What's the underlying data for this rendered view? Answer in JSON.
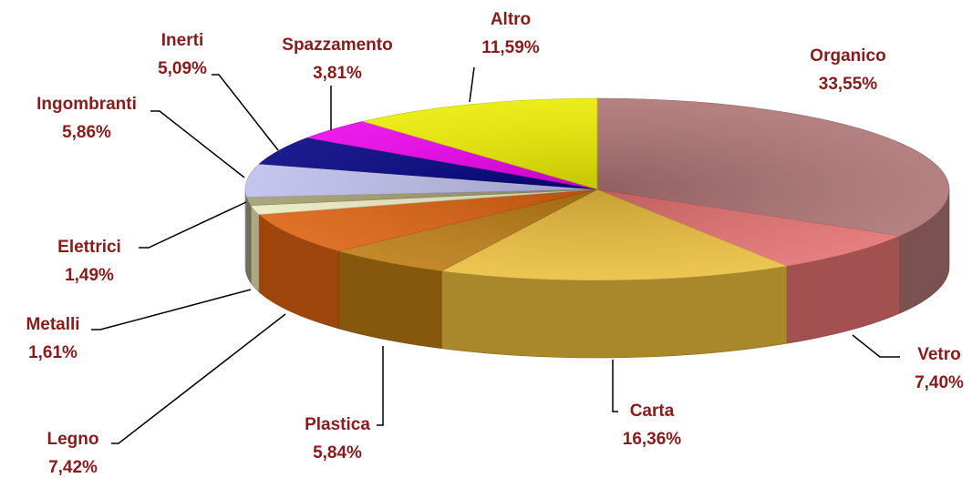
{
  "chart_data": {
    "type": "pie3d",
    "categories": [
      "Organico",
      "Vetro",
      "Carta",
      "Plastica",
      "Legno",
      "Metalli",
      "Elettrici",
      "Ingombranti",
      "Inerti",
      "Spazzamento",
      "Altro"
    ],
    "values": [
      33.55,
      7.4,
      16.36,
      5.84,
      7.42,
      1.61,
      1.49,
      5.86,
      5.09,
      3.81,
      11.59
    ],
    "value_labels": [
      "33,55%",
      "7,40%",
      "16,36%",
      "5,84%",
      "7,42%",
      "1,61%",
      "1,49%",
      "5,86%",
      "5,09%",
      "3,81%",
      "11,59%"
    ],
    "colors": [
      "#b07474",
      "#e87272",
      "#f0c23e",
      "#c07e12",
      "#e0620e",
      "#f2f0c4",
      "#a4a070",
      "#c2c2f0",
      "#000084",
      "#f000f0",
      "#f0f000"
    ]
  }
}
